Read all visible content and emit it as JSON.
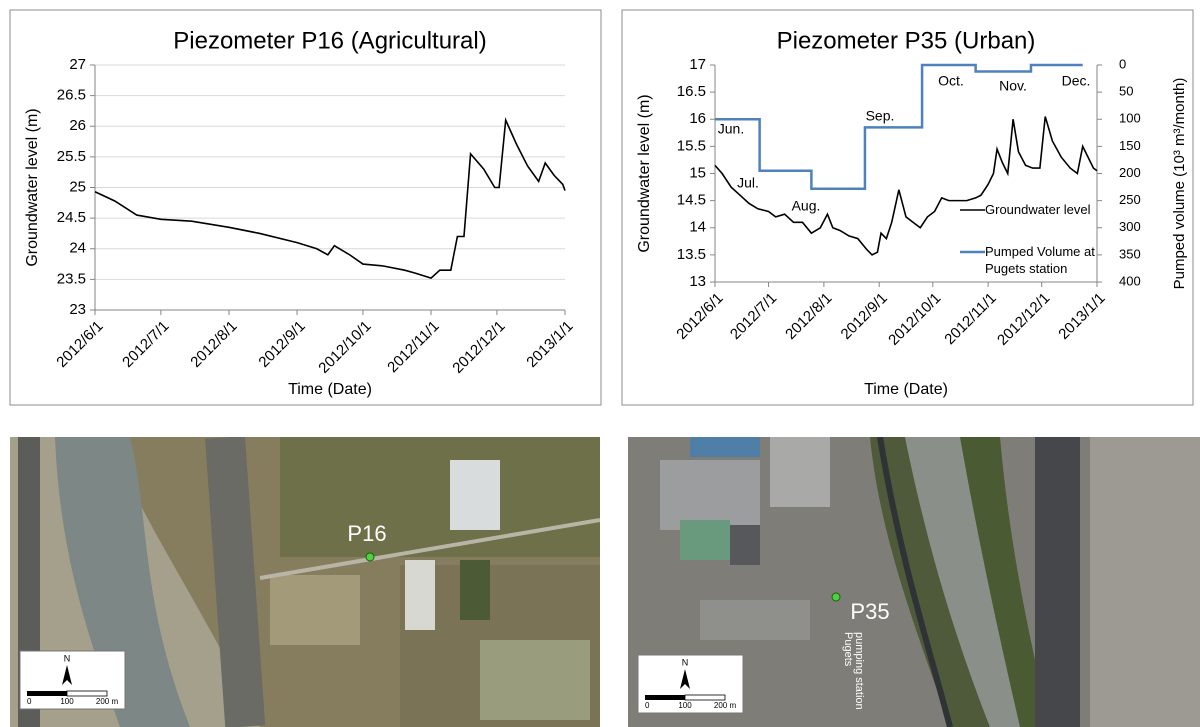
{
  "chart_data": [
    {
      "type": "line",
      "title": "Piezometer P16 (Agricultural)",
      "x_label": "Time (Date)",
      "y_label": "Groundwater level (m)",
      "xlim": [
        "2012/6/1",
        "2013/1/1"
      ],
      "xticks": [
        "2012/6/1",
        "2012/7/1",
        "2012/8/1",
        "2012/9/1",
        "2012/10/1",
        "2012/11/1",
        "2012/12/1",
        "2013/1/1"
      ],
      "ylim": [
        23,
        27
      ],
      "yticks": [
        23,
        23.5,
        24,
        24.5,
        25,
        25.5,
        26,
        26.5,
        27
      ],
      "grid": true,
      "series": [
        {
          "name": "Groundwater level",
          "color": "#000000",
          "x": [
            "2012/6/1",
            "2012/6/10",
            "2012/6/20",
            "2012/7/1",
            "2012/7/15",
            "2012/8/1",
            "2012/8/15",
            "2012/9/1",
            "2012/9/10",
            "2012/9/15",
            "2012/9/18",
            "2012/9/25",
            "2012/10/1",
            "2012/10/10",
            "2012/10/20",
            "2012/10/25",
            "2012/11/1",
            "2012/11/5",
            "2012/11/10",
            "2012/11/13",
            "2012/11/16",
            "2012/11/19",
            "2012/11/25",
            "2012/11/30",
            "2012/12/2",
            "2012/12/5",
            "2012/12/10",
            "2012/12/15",
            "2012/12/20",
            "2012/12/23",
            "2012/12/27",
            "2012/12/31",
            "2013/1/1"
          ],
          "values": [
            24.93,
            24.78,
            24.55,
            24.48,
            24.45,
            24.35,
            24.25,
            24.1,
            24.0,
            23.9,
            24.05,
            23.9,
            23.75,
            23.72,
            23.65,
            23.6,
            23.52,
            23.65,
            23.65,
            24.2,
            24.2,
            25.55,
            25.3,
            25.0,
            25.0,
            26.1,
            25.7,
            25.35,
            25.1,
            25.4,
            25.2,
            25.05,
            24.95
          ]
        }
      ]
    },
    {
      "type": "line",
      "title": "Piezometer P35 (Urban)",
      "x_label": "Time (Date)",
      "y_label": "Groundwater level (m)",
      "y2_label": "Pumped volume (10³ m³/month)",
      "xlim": [
        "2012/6/1",
        "2013/1/1"
      ],
      "xticks": [
        "2012/6/1",
        "2012/7/1",
        "2012/8/1",
        "2012/9/1",
        "2012/10/1",
        "2012/11/1",
        "2012/12/1",
        "2013/1/1"
      ],
      "ylim": [
        13,
        17
      ],
      "yticks": [
        13,
        13.5,
        14,
        14.5,
        15,
        15.5,
        16,
        16.5,
        17
      ],
      "y2lim": [
        400,
        0
      ],
      "y2ticks": [
        0,
        50,
        100,
        150,
        200,
        250,
        300,
        350,
        400
      ],
      "grid": false,
      "legend": "right",
      "annotations": [
        "Jun.",
        "Jul.",
        "Aug.",
        "Sep.",
        "Oct.",
        "Nov.",
        "Dec."
      ],
      "series": [
        {
          "name": "Groundwater level",
          "color": "#000000",
          "x": [
            "2012/6/1",
            "2012/6/5",
            "2012/6/10",
            "2012/6/15",
            "2012/6/20",
            "2012/6/25",
            "2012/7/1",
            "2012/7/5",
            "2012/7/10",
            "2012/7/15",
            "2012/7/20",
            "2012/7/25",
            "2012/7/30",
            "2012/8/3",
            "2012/8/6",
            "2012/8/10",
            "2012/8/15",
            "2012/8/20",
            "2012/8/25",
            "2012/8/28",
            "2012/8/31",
            "2012/9/2",
            "2012/9/5",
            "2012/9/8",
            "2012/9/12",
            "2012/9/16",
            "2012/9/20",
            "2012/9/24",
            "2012/9/28",
            "2012/10/2",
            "2012/10/6",
            "2012/10/10",
            "2012/10/15",
            "2012/10/20",
            "2012/10/25",
            "2012/10/28",
            "2012/11/1",
            "2012/11/4",
            "2012/11/6",
            "2012/11/9",
            "2012/11/12",
            "2012/11/15",
            "2012/11/18",
            "2012/11/22",
            "2012/11/26",
            "2012/11/30",
            "2012/12/3",
            "2012/12/7",
            "2012/12/12",
            "2012/12/17",
            "2012/12/21",
            "2012/12/24",
            "2012/12/27",
            "2012/12/30",
            "2013/1/1"
          ],
          "values": [
            15.15,
            15.0,
            14.75,
            14.6,
            14.45,
            14.35,
            14.3,
            14.2,
            14.25,
            14.1,
            14.1,
            13.9,
            14.0,
            14.25,
            14.0,
            13.95,
            13.85,
            13.8,
            13.6,
            13.5,
            13.55,
            13.9,
            13.8,
            14.1,
            14.7,
            14.2,
            14.1,
            14.0,
            14.2,
            14.3,
            14.55,
            14.5,
            14.5,
            14.5,
            14.55,
            14.6,
            14.8,
            15.0,
            15.45,
            15.2,
            15.0,
            16.0,
            15.4,
            15.15,
            15.1,
            15.1,
            16.05,
            15.6,
            15.3,
            15.1,
            15.0,
            15.5,
            15.3,
            15.1,
            15.05
          ]
        },
        {
          "name": "Pumped Volume at Pugets station",
          "color": "#4f81bd",
          "axis": "y2",
          "step": true,
          "x": [
            "2012/6/1",
            "2012/6/26",
            "2012/7/25",
            "2012/8/24",
            "2012/9/25",
            "2012/10/25",
            "2012/11/25",
            "2012/12/24"
          ],
          "values": [
            100,
            195,
            228,
            115,
            0,
            12,
            0,
            0
          ]
        }
      ]
    }
  ],
  "maps": [
    {
      "label": "P16",
      "north": "N",
      "scale_labels": [
        "0",
        "100",
        "200 m"
      ]
    },
    {
      "label": "P35",
      "north": "N",
      "scale_labels": [
        "0",
        "100",
        "200 m"
      ],
      "station": [
        "Pugets",
        "pumping station"
      ]
    }
  ]
}
